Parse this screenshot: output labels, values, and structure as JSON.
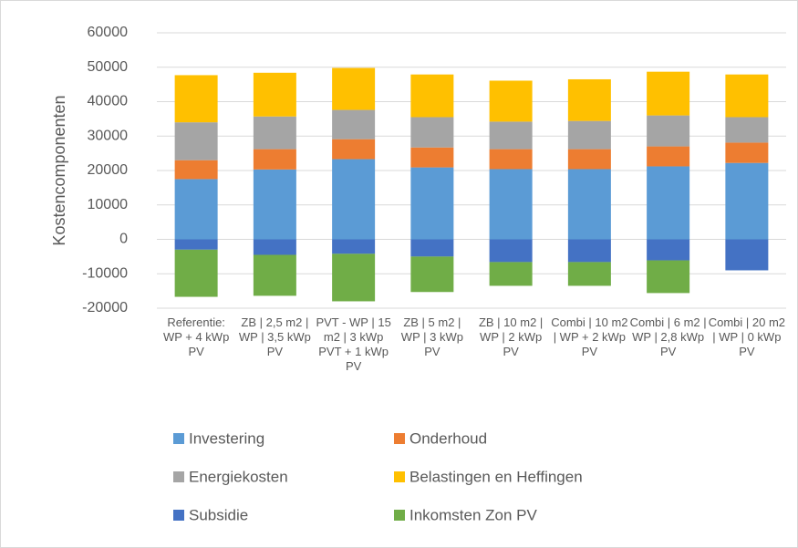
{
  "chart_data": {
    "type": "stacked_bar",
    "y_label": "Kostencomponenten",
    "categories": [
      "Referentie: WP + 4 kWp PV",
      "ZB | 2,5 m2 | WP | 3,5 kWp PV",
      "PVT - WP | 15 m2 | 3 kWp PVT + 1 kWp PV",
      "ZB | 5 m2 | WP | 3 kWp PV",
      "ZB | 10 m2 | WP | 2 kWp PV",
      "Combi | 10 m2 | WP + 2 kWp PV",
      "Combi | 6 m2 | WP | 2,8 kWp PV",
      "Combi | 20 m2 | WP | 0 kWp PV"
    ],
    "series": [
      {
        "name": "Investering",
        "color": "#5b9bd5",
        "values": [
          17500,
          20300,
          23300,
          20900,
          20400,
          20400,
          21200,
          22200
        ]
      },
      {
        "name": "Onderhoud",
        "color": "#ed7d31",
        "values": [
          5500,
          5900,
          5800,
          5800,
          5800,
          5800,
          5800,
          5900
        ]
      },
      {
        "name": "Energiekosten",
        "color": "#a5a5a5",
        "values": [
          11000,
          9500,
          8500,
          8800,
          8000,
          8200,
          9000,
          7400
        ]
      },
      {
        "name": "Belastingen en Heffingen",
        "color": "#ffc000",
        "values": [
          13700,
          12700,
          12200,
          12400,
          11900,
          12100,
          12700,
          12400
        ]
      },
      {
        "name": "Subsidie",
        "color": "#4472c4",
        "values": [
          -3000,
          -4500,
          -4200,
          -5000,
          -6600,
          -6600,
          -6100,
          -9000
        ]
      },
      {
        "name": "Inkomsten Zon PV",
        "color": "#70ad47",
        "values": [
          -13700,
          -11900,
          -13800,
          -10300,
          -6900,
          -6900,
          -9500,
          0
        ]
      }
    ],
    "ylim": [
      -20000,
      60000
    ],
    "yticks": [
      -20000,
      -10000,
      0,
      10000,
      20000,
      30000,
      40000,
      50000,
      60000
    ],
    "grid": true
  }
}
